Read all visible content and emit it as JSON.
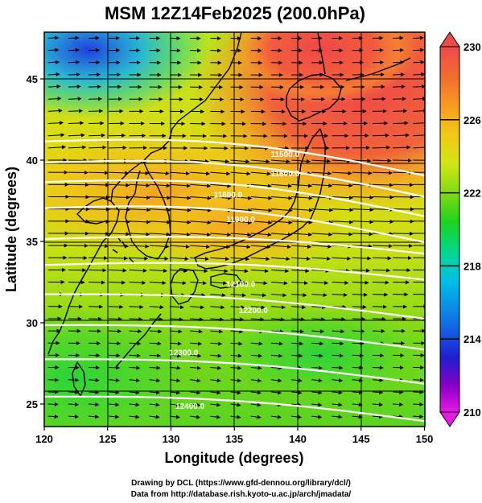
{
  "title": "MSM 12Z14Feb2025 (200.0hPa)",
  "credits": {
    "line1": "Drawing by DCL (https://www.gfd-dennou.org/library/dcl/)",
    "line2": "Data from http://database.rish.kyoto-u.ac.jp/arch/jmadata/"
  },
  "chart_data": {
    "type": "heatmap",
    "title": "MSM 12Z14Feb2025 (200.0hPa)",
    "xlabel": "Longitude (degrees)",
    "ylabel": "Latitude  (degrees)",
    "xlim": [
      120,
      150
    ],
    "ylim": [
      22.5,
      48
    ],
    "x_ticks": [
      "120",
      "125",
      "130",
      "135",
      "140",
      "145",
      "150"
    ],
    "y_ticks": [
      "25",
      "30",
      "35",
      "40",
      "45"
    ],
    "grid": true,
    "colorbar": {
      "range": [
        210,
        230
      ],
      "tick_labels": [
        "230",
        "226",
        "222",
        "218",
        "214",
        "210"
      ],
      "colors": [
        "#e619e6",
        "#8a00c8",
        "#1f1fd0",
        "#0f74e6",
        "#00bfe6",
        "#00d98c",
        "#1ed21e",
        "#7fdb14",
        "#d2e614",
        "#f2c814",
        "#f79a23",
        "#f26b2f",
        "#ed4a4a"
      ]
    },
    "contours": {
      "levels": [
        11500,
        11600,
        11700,
        11800,
        11900,
        12000,
        12100,
        12200,
        12300,
        12400
      ],
      "labels": [
        {
          "text": "11500.0",
          "lon": 139.0,
          "lat": 40.2
        },
        {
          "text": "11600.0",
          "lon": 139.0,
          "lat": 39.0
        },
        {
          "text": "11800.0",
          "lon": 134.5,
          "lat": 37.7
        },
        {
          "text": "11900.0",
          "lon": 135.5,
          "lat": 36.2
        },
        {
          "text": "12100.0",
          "lon": 135.5,
          "lat": 32.2
        },
        {
          "text": "12200.0",
          "lon": 136.5,
          "lat": 30.6
        },
        {
          "text": "12300.0",
          "lon": 131.0,
          "lat": 28.0
        },
        {
          "text": "12400.0",
          "lon": 131.5,
          "lat": 24.7
        }
      ]
    },
    "vectors": "wind arrows (westerly jet)"
  }
}
